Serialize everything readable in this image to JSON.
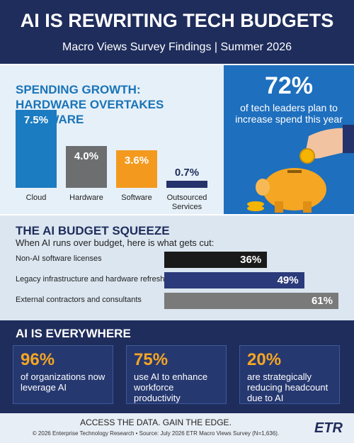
{
  "header": {
    "title": "AI IS REWRITING TECH BUDGETS",
    "subtitle": "Macro Views Survey Findings | Summer 2026"
  },
  "spending": {
    "type": "bar",
    "title_lines": [
      "SPENDING GROWTH:",
      "HARDWARE OVERTAKES SOFTWARE"
    ],
    "categories": [
      "Cloud",
      "Hardware",
      "Software",
      "Outsourced Services"
    ],
    "values": [
      7.5,
      4.0,
      3.6,
      0.7
    ],
    "value_labels": [
      "7.5%",
      "4.0%",
      "3.6%",
      "0.7%"
    ],
    "colors": [
      "#1b7cc1",
      "#6d6e70",
      "#f39a1e",
      "#24336b"
    ]
  },
  "highlight": {
    "stat": "72%",
    "text": "of tech leaders plan to increase spend this year"
  },
  "squeeze": {
    "type": "bar",
    "title": "THE AI BUDGET SQUEEZE",
    "subtitle": "When AI runs over budget, here is what gets cut:",
    "categories": [
      "Non-AI software licenses",
      "Legacy infrastructure and hardware refresh",
      "External contractors and consultants"
    ],
    "values": [
      36,
      49,
      61
    ],
    "value_labels": [
      "36%",
      "49%",
      "61%"
    ],
    "colors": [
      "#1a1a1a",
      "#2b3a7a",
      "#7a7a7a"
    ]
  },
  "everywhere": {
    "title": "AI IS EVERYWHERE",
    "cards": [
      {
        "stat": "96%",
        "text": "of organizations now leverage AI"
      },
      {
        "stat": "75%",
        "text": "use AI to enhance workforce productivity"
      },
      {
        "stat": "20%",
        "text": "are strategically reducing headcount due to AI"
      }
    ]
  },
  "footer": {
    "tagline": "ACCESS THE DATA. GAIN THE EDGE.",
    "source": "© 2026 Enterprise Technology Research • Source: July 2026 ETR Macro Views Survey (N=1,636).",
    "logo": "ETR"
  }
}
